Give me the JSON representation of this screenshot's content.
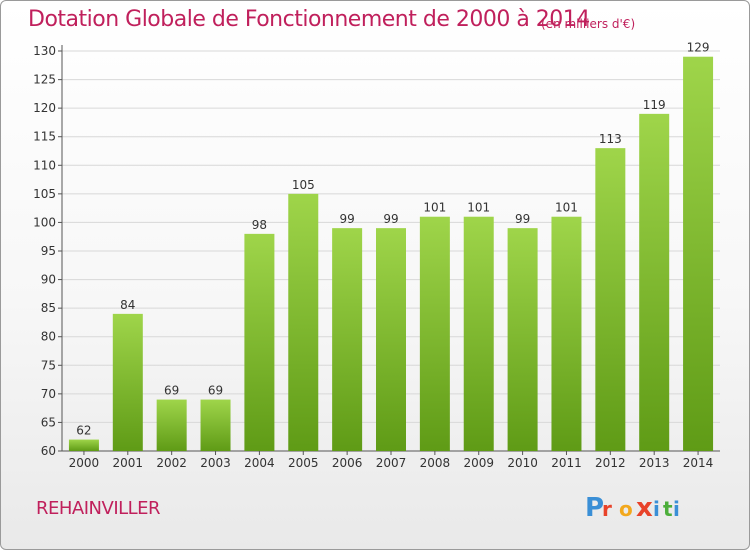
{
  "header": {
    "title": "Dotation Globale de Fonctionnement de 2000 à 2014",
    "unit": "(en milliers d'€)"
  },
  "footer": {
    "commune": "REHAINVILLER",
    "logo_text": "Proxiti"
  },
  "colors": {
    "title": "#c0205c",
    "bar_top": "#9fd54a",
    "bar_bottom": "#5f9b16",
    "grid": "#d8d8d8",
    "logo_letters": [
      "#3a8fd6",
      "#e8432a",
      "#f2a81d",
      "#e8432a",
      "#3a8fd6",
      "#4cae3a",
      "#3a8fd6"
    ]
  },
  "chart_data": {
    "type": "bar",
    "title": "Dotation Globale de Fonctionnement de 2000 à 2014",
    "subtitle": "(en milliers d'€)",
    "xlabel": "",
    "ylabel": "",
    "categories": [
      "2000",
      "2001",
      "2002",
      "2003",
      "2004",
      "2005",
      "2006",
      "2007",
      "2008",
      "2009",
      "2010",
      "2011",
      "2012",
      "2013",
      "2014"
    ],
    "values": [
      62,
      84,
      69,
      69,
      98,
      105,
      99,
      99,
      101,
      101,
      99,
      101,
      113,
      119,
      129
    ],
    "ylim": [
      60,
      130
    ],
    "yticks": [
      60,
      65,
      70,
      75,
      80,
      85,
      90,
      95,
      100,
      105,
      110,
      115,
      120,
      125,
      130
    ],
    "grid": true,
    "data_labels": true
  }
}
